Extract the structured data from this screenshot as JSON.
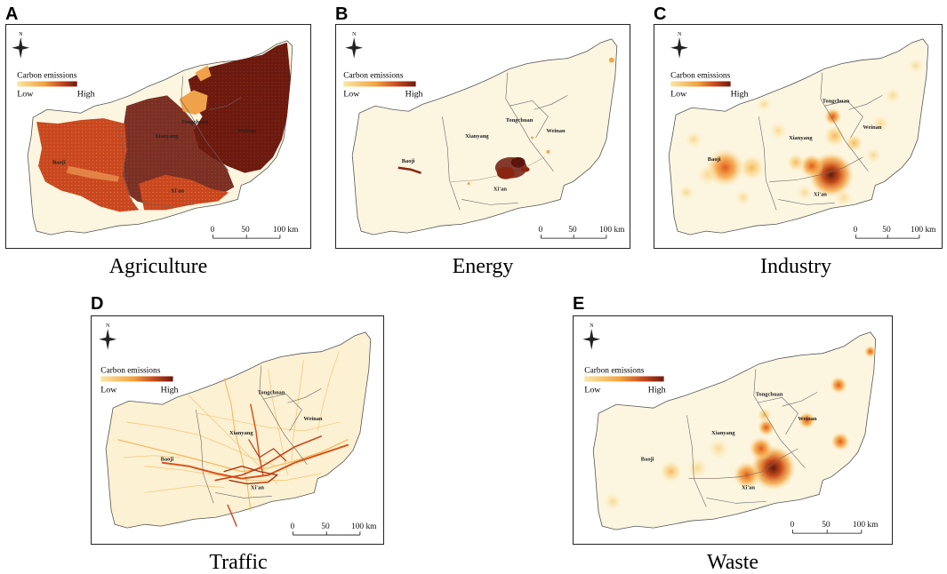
{
  "colors": {
    "base_fill": "#fcf6e1",
    "border": "#555555",
    "low": "#fbe7a6",
    "mid": "#f39a32",
    "high": "#6e1a0e"
  },
  "legend": {
    "title": "Carbon emissions",
    "low": "Low",
    "high": "High"
  },
  "scale_bar": {
    "t0": "0",
    "t1": "50",
    "t2": "100 km"
  },
  "compass": {
    "north": "N"
  },
  "cities": {
    "baoji": "Baoji",
    "xianyang": "Xianyang",
    "tongchuan": "Tongchuan",
    "weinan": "Weinan",
    "xian": "Xi'an"
  },
  "panels": [
    {
      "letter": "A",
      "caption": "Agriculture"
    },
    {
      "letter": "B",
      "caption": "Energy"
    },
    {
      "letter": "C",
      "caption": "Industry"
    },
    {
      "letter": "D",
      "caption": "Traffic"
    },
    {
      "letter": "E",
      "caption": "Waste"
    }
  ]
}
